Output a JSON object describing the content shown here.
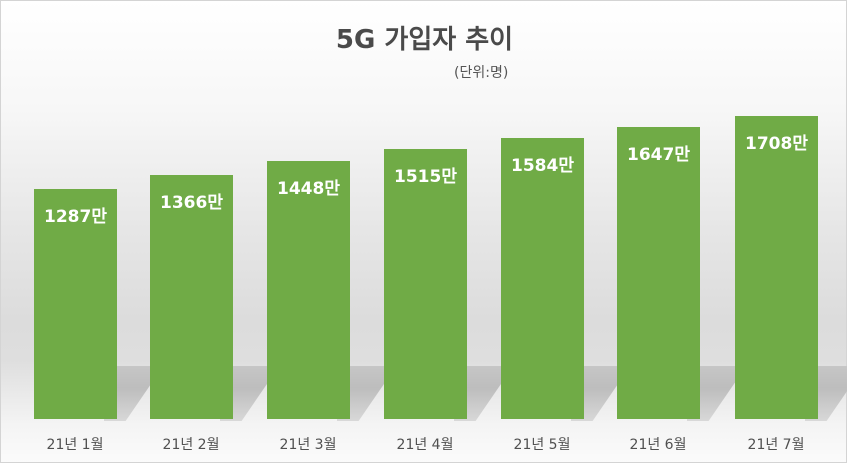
{
  "chart_data": {
    "type": "bar",
    "title": "5G 가입자 추이",
    "subtitle": "(단위:명)",
    "categories": [
      "21년 1월",
      "21년 2월",
      "21년 3월",
      "21년 4월",
      "21년 5월",
      "21년 6월",
      "21년 7월"
    ],
    "values": [
      1287,
      1366,
      1448,
      1515,
      1584,
      1647,
      1708
    ],
    "value_labels": [
      "1287만",
      "1366만",
      "1448만",
      "1515만",
      "1584만",
      "1647만",
      "1708만"
    ],
    "value_unit": "만",
    "xlabel": "",
    "ylabel": "",
    "grid": false,
    "legend": null,
    "bar_color": "#70ab46"
  },
  "colors": {
    "bar": "#70ab46",
    "title": "#4a4a4a",
    "label": "#ffffff"
  }
}
